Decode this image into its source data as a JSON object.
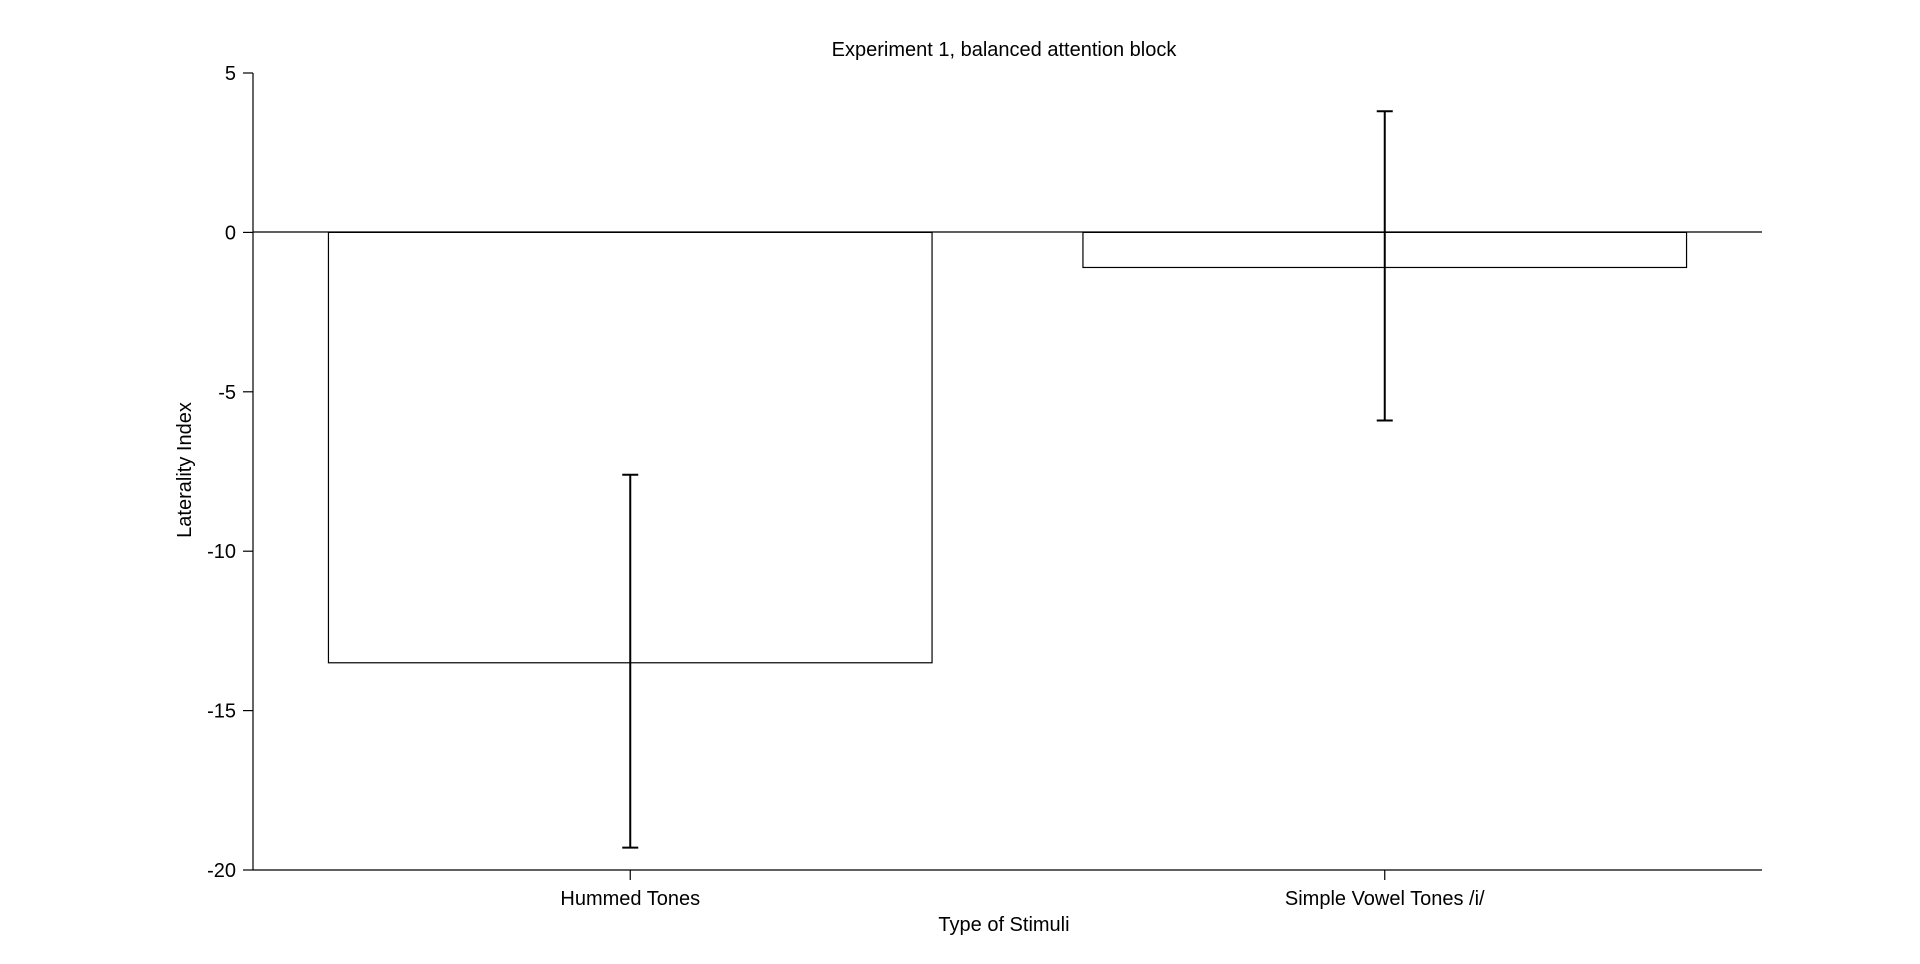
{
  "chart_data": {
    "type": "bar",
    "title": "Experiment 1, balanced attention block",
    "xlabel": "Type of Stimuli",
    "ylabel": "Laterality Index",
    "categories": [
      "Hummed Tones",
      "Simple Vowel Tones /i/"
    ],
    "values": [
      -13.5,
      -1.1
    ],
    "error_low": [
      -19.3,
      -5.9
    ],
    "error_high": [
      -7.6,
      3.8
    ],
    "ylim": [
      -20,
      5
    ],
    "yticks": [
      "5",
      "0",
      "-5",
      "-10",
      "-15",
      "-20"
    ],
    "ytick_values": [
      5,
      0,
      -5,
      -10,
      -15,
      -20
    ],
    "grid": false,
    "colors": {
      "bar_fill": "#ffffff",
      "bar_stroke": "#000000",
      "axis": "#000000"
    }
  }
}
